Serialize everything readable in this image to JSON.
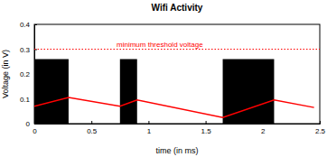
{
  "chart_data": {
    "type": "line",
    "title": "Wifi Activity",
    "x_label": "time (in ms)",
    "y_label": "Voltage (in V)",
    "xlim": [
      0,
      2.5
    ],
    "xticks": [
      0,
      0.5,
      1,
      1.5,
      2,
      2.5
    ],
    "ylim": [
      0,
      0.4
    ],
    "yticks": [
      0,
      0.1,
      0.2,
      0.3,
      0.4
    ],
    "grid": false,
    "series": [
      {
        "type": "band",
        "color": "#000000",
        "x_start": [
          0,
          0.75,
          1.65
        ],
        "x_end": [
          0.3,
          0.9,
          2.1
        ],
        "values": [
          0.26,
          0.26,
          0.26
        ]
      },
      {
        "type": "line",
        "color": "#ff0000",
        "line_style": "solid",
        "x": [
          0,
          0.3,
          0.75,
          0.9,
          1.65,
          2.1,
          2.45
        ],
        "values": [
          0.07,
          0.105,
          0.07,
          0.095,
          0.025,
          0.095,
          0.065
        ]
      },
      {
        "type": "hline",
        "name": "minimum threshold voltage",
        "color": "#ff0000",
        "line_style": "dotted",
        "values": [
          0.3
        ]
      }
    ]
  }
}
